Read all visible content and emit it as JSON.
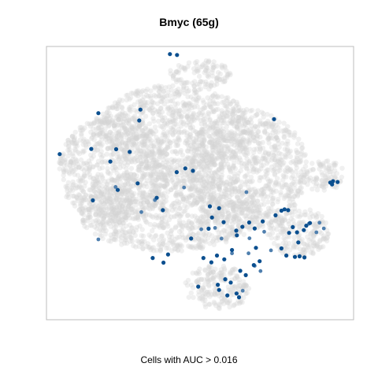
{
  "chart_data": {
    "type": "scatter",
    "title": "Bmyc (65g)",
    "xlabel": "Cells with AUC > 0.016",
    "ylabel": "",
    "grid": false,
    "legend": "none",
    "xlim": [
      0,
      100
    ],
    "ylim": [
      0,
      100
    ],
    "colors": {
      "background_cells": "#d3d3d3",
      "high_auc": "#0b4f8f",
      "mid_auc": "#4f7fae"
    },
    "series": [
      {
        "role": "background",
        "regions": [
          [
            42,
            70,
            25,
            16
          ],
          [
            22,
            55,
            18,
            20
          ],
          [
            65,
            55,
            20,
            22
          ],
          [
            40,
            40,
            30,
            15
          ],
          [
            90,
            53,
            7,
            6
          ],
          [
            82,
            32,
            10,
            9
          ],
          [
            56,
            12,
            11,
            8
          ],
          [
            50,
            90,
            10,
            5
          ]
        ]
      },
      {
        "role": "high_auc",
        "x": [
          40.2,
          42.5,
          16.9,
          30.6,
          30.2,
          74.1,
          22.7,
          4.3,
          14.6,
          20.8,
          27.1,
          23.2,
          15.1,
          29.7,
          45.2,
          47.7,
          53.2,
          56.2,
          53.9,
          52.8,
          57.7,
          61.8,
          63.8,
          66.0,
          62.0,
          55.5,
          67.8,
          70.4,
          68.2,
          74.6,
          76.5,
          77.5,
          78.7,
          79.0,
          80.2,
          82.0,
          83.8,
          84.6,
          85.8,
          81.6,
          80.9,
          76.5,
          78.1,
          82.4,
          84.0,
          67.5,
          69.4,
          51.1,
          53.7,
          49.4,
          56.2,
          58.9,
          61.9,
          62.7,
          60.0,
          58.2,
          55.8,
          63.1,
          64.9,
          34.6,
          38.1,
          39.6,
          47.1,
          37.9,
          92.4,
          93.3,
          94.8,
          93.0,
          60.4,
          57.9,
          42.4,
          35.9
        ],
        "y": [
          97.2,
          96.9,
          75.6,
          76.9,
          72.9,
          73.4,
          62.4,
          60.6,
          62.5,
          57.9,
          61.4,
          47.5,
          43.7,
          49.9,
          55.4,
          54.5,
          41.5,
          40.8,
          37.4,
          33.3,
          35.7,
          32.6,
          34.0,
          35.6,
          30.9,
          23.5,
          33.4,
          36.0,
          26.3,
          38.2,
          39.9,
          40.4,
          40.1,
          31.8,
          33.9,
          28.3,
          32.8,
          34.4,
          35.4,
          32.0,
          23.0,
          26.1,
          23.5,
          23.2,
          22.8,
          20.0,
          21.4,
          22.6,
          21.0,
          12.1,
          10.9,
          8.9,
          9.6,
          8.2,
          13.6,
          14.8,
          12.8,
          17.9,
          16.3,
          22.6,
          20.9,
          23.9,
          29.7,
          40.1,
          50.2,
          50.7,
          50.4,
          49.5,
          25.5,
          22.1,
          54.0,
          44.6
        ]
      },
      {
        "role": "mid_auc",
        "x": [
          22.5,
          30.9,
          35.3,
          44.8,
          57.0,
          54.9,
          66.1,
          70.9,
          60.4,
          65.8,
          88.9,
          90.3,
          87.9,
          85.4,
          16.9,
          50.4,
          65.1,
          73.1,
          69.7,
          67.8,
          63.9
        ],
        "y": [
          48.6,
          39.4,
          43.8,
          48.4,
          29.7,
          33.6,
          29.8,
          32.2,
          24.3,
          24.3,
          35.5,
          33.4,
          32.0,
          35.1,
          29.4,
          33.1,
          46.7,
          25.4,
          17.8,
          19.7,
          10.6
        ]
      }
    ]
  }
}
